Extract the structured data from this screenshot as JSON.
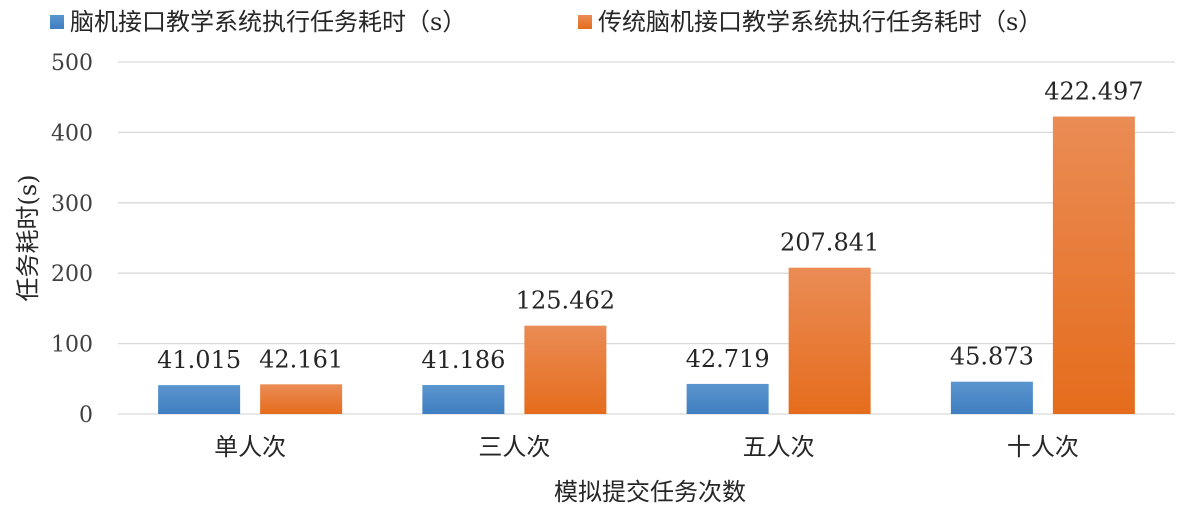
{
  "chart_data": {
    "type": "bar",
    "title": "",
    "xlabel": "模拟提交任务次数",
    "ylabel": "任务耗时(s)",
    "ylim": [
      0,
      500
    ],
    "yticks": [
      0,
      100,
      200,
      300,
      400,
      500
    ],
    "grid": true,
    "legend_position": "top",
    "categories": [
      "单人次",
      "三人次",
      "五人次",
      "十人次"
    ],
    "series": [
      {
        "name": "脑机接口教学系统执行任务耗时（s）",
        "color": "#4a86c5",
        "values": [
          41.015,
          41.186,
          42.719,
          45.873
        ],
        "labels": [
          "41.015",
          "41.186",
          "42.719",
          "45.873"
        ]
      },
      {
        "name": "传统脑机接口教学系统执行任务耗时（s）",
        "color": "#e97a2c",
        "values": [
          42.161,
          125.462,
          207.841,
          422.497
        ],
        "labels": [
          "42.161",
          "125.462",
          "207.841",
          "422.497"
        ]
      }
    ]
  }
}
